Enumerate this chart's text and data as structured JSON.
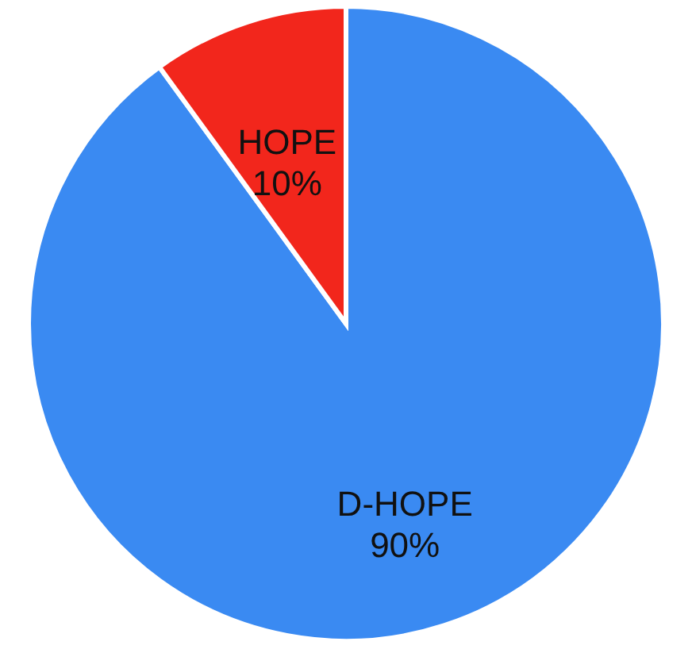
{
  "chart_data": {
    "type": "pie",
    "categories": [
      "D-HOPE",
      "HOPE"
    ],
    "values": [
      90,
      10
    ],
    "colors": [
      "#3a8af2",
      "#f2261c"
    ],
    "value_labels": [
      "90%",
      "10%"
    ]
  }
}
